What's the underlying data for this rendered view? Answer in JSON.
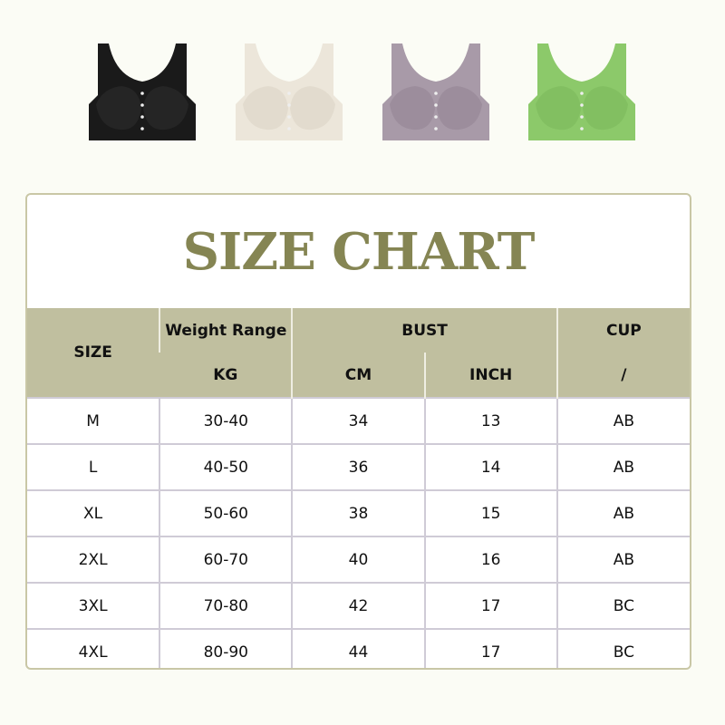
{
  "products": [
    {
      "color_name": "black",
      "hex": "#1a1a1a",
      "pattern": "#333333"
    },
    {
      "color_name": "beige",
      "hex": "#ece6da",
      "pattern": "#d6cebf"
    },
    {
      "color_name": "purple",
      "hex": "#a89aa8",
      "pattern": "#8e7e8e"
    },
    {
      "color_name": "green",
      "hex": "#8cc96a",
      "pattern": "#76b356"
    }
  ],
  "title": "SIZE CHART",
  "header": {
    "size": "SIZE",
    "weight": "Weight Range",
    "weight_unit": "KG",
    "bust": "BUST",
    "bust_cm": "CM",
    "bust_inch": "INCH",
    "cup": "CUP",
    "cup_sub": "/"
  },
  "rows": [
    [
      "M",
      "30-40",
      "34",
      "13",
      "AB"
    ],
    [
      "L",
      "40-50",
      "36",
      "14",
      "AB"
    ],
    [
      "XL",
      "50-60",
      "38",
      "15",
      "AB"
    ],
    [
      "2XL",
      "60-70",
      "40",
      "16",
      "AB"
    ],
    [
      "3XL",
      "70-80",
      "42",
      "17",
      "BC"
    ],
    [
      "4XL",
      "80-90",
      "44",
      "17",
      "BC"
    ]
  ],
  "colors": {
    "title": "#858553",
    "header_bg": "#c0bf9f",
    "border": "#c9c7a6"
  }
}
